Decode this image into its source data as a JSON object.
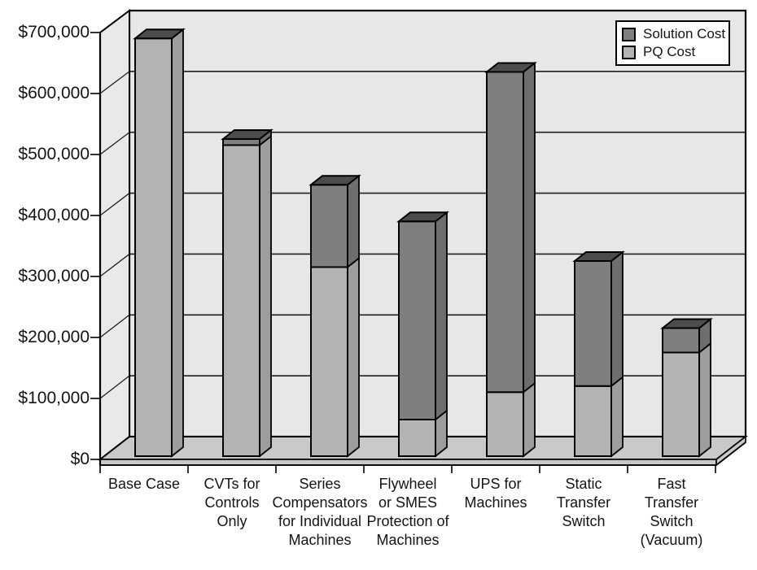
{
  "chart_data": {
    "type": "bar",
    "subtype": "3d-stacked-column",
    "title": "",
    "xlabel": "",
    "ylabel": "",
    "categories": [
      "Base Case",
      "CVTs for\nControls\nOnly",
      "Series\nCompensators\nfor Individual\nMachines",
      "Flywheel\nor SMES\nProtection of\nMachines",
      "UPS for\nMachines",
      "Static\nTransfer\nSwitch",
      "Fast\nTransfer\nSwitch\n(Vacuum)"
    ],
    "series": [
      {
        "name": "Solution Cost",
        "color": "#7f7f7f",
        "values": [
          0,
          10000,
          135000,
          325000,
          525000,
          205000,
          40000
        ]
      },
      {
        "name": "PQ Cost",
        "color": "#b3b3b3",
        "values": [
          685000,
          510000,
          310000,
          60000,
          105000,
          115000,
          170000
        ]
      }
    ],
    "stacking_order_bottom_to_top": [
      "PQ Cost",
      "Solution Cost"
    ],
    "totals": [
      685000,
      520000,
      445000,
      385000,
      630000,
      320000,
      210000
    ],
    "y_tick_labels": [
      "$0",
      "$100,000",
      "$200,000",
      "$300,000",
      "$400,000",
      "$500,000",
      "$600,000",
      "$700,000"
    ],
    "ylim": [
      0,
      700000
    ],
    "ytick_step": 100000,
    "grid": "horizontal",
    "legend_position": "top-right"
  },
  "legend": {
    "items": [
      {
        "label": "Solution Cost",
        "swatch": "#7f7f7f"
      },
      {
        "label": "PQ Cost",
        "swatch": "#b3b3b3"
      }
    ]
  },
  "colors": {
    "background": "#ffffff",
    "back_wall": "#e7e7e7",
    "side_wall": "#e9e9e9",
    "floor": "#c9c9c9",
    "pq_front": "#b3b3b3",
    "pq_side": "#9d9d9d",
    "solution_front": "#7f7f7f",
    "solution_side": "#6e6e6e",
    "bar_top": "#4c4c4c",
    "outline": "#000000",
    "gridline": "#1f1f1f"
  }
}
